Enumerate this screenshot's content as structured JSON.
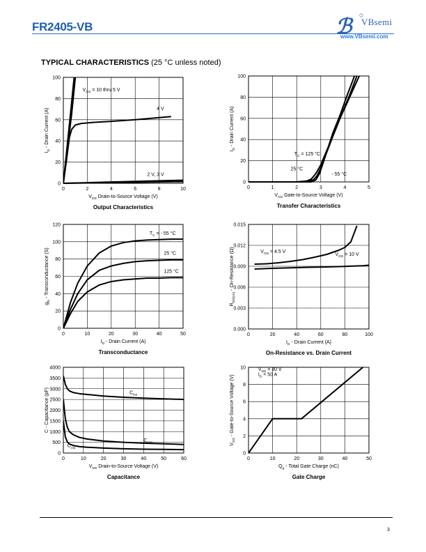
{
  "header": {
    "part_number": "FR2405-VB",
    "brand": "VBsemi",
    "url": "www.VBsemi.com",
    "brand_color": "#1f5fb3"
  },
  "section": {
    "title": "TYPICAL CHARACTERISTICS",
    "note": "(25 °C unless noted)"
  },
  "page_number": "3",
  "chart_data": [
    {
      "id": "output",
      "type": "line",
      "title": "Output Characteristics",
      "xlabel": "Drain-to-Source Voltage (V)",
      "xlabel_sym": "V",
      "xlabel_sub": "DS",
      "ylabel": "- Drain Current (A)",
      "ylabel_sym": "I",
      "ylabel_sub": "D",
      "xlim": [
        0,
        10
      ],
      "ylim": [
        0,
        100
      ],
      "xticks": [
        "0",
        "2",
        "4",
        "6",
        "8",
        "10"
      ],
      "yticks": [
        "0",
        "20",
        "40",
        "60",
        "80",
        "100"
      ],
      "grid": true,
      "series": [
        {
          "name": "V_GS = 10 thru 5 V",
          "x": [
            0,
            0.3,
            0.6,
            0.9
          ],
          "y": [
            0,
            33,
            66,
            100
          ]
        },
        {
          "name": "V_GS = 10 thru 5 V",
          "x": [
            0,
            0.35,
            0.7,
            1.0
          ],
          "y": [
            0,
            33,
            66,
            100
          ]
        },
        {
          "name": "4 V",
          "x": [
            0,
            0.3,
            0.5,
            0.7,
            1.0,
            1.5,
            2.5,
            4,
            6,
            8,
            9
          ],
          "y": [
            0,
            25,
            43,
            51,
            55,
            56.5,
            57.5,
            58.5,
            60,
            62,
            63
          ]
        },
        {
          "name": "2 V, 3 V",
          "x": [
            0,
            2,
            4,
            6,
            8,
            10
          ],
          "y": [
            0,
            0.3,
            0.6,
            1.0,
            1.3,
            1.6
          ]
        },
        {
          "name": "2 V, 3 V",
          "x": [
            0,
            2,
            4,
            6,
            8,
            10
          ],
          "y": [
            0,
            0.6,
            1.2,
            1.8,
            2.4,
            2.9
          ]
        }
      ],
      "annotations": [
        {
          "text": "V",
          "sub": "GS",
          "rest": " = 10 thru 5 V",
          "x": 1.6,
          "y": 87
        },
        {
          "text": "4 V",
          "x": 7.8,
          "y": 69
        },
        {
          "text": "2 V, 3 V",
          "x": 7.0,
          "y": 7
        }
      ]
    },
    {
      "id": "transfer",
      "type": "line",
      "title": "Transfer Characteristics",
      "xlabel": "Gate-to-Source Voltage (V)",
      "xlabel_sym": "V",
      "xlabel_sub": "GS",
      "ylabel": "- Drain Current (A)",
      "ylabel_sym": "I",
      "ylabel_sub": "D",
      "xlim": [
        0,
        5
      ],
      "ylim": [
        0,
        100
      ],
      "xticks": [
        "0",
        "1",
        "2",
        "3",
        "4",
        "5"
      ],
      "yticks": [
        "0",
        "20",
        "40",
        "60",
        "80",
        "100"
      ],
      "grid": true,
      "series": [
        {
          "name": "T_C = 125 °C",
          "x": [
            0,
            2.0,
            2.4,
            2.6,
            2.8,
            3.0,
            3.2,
            3.5,
            3.8,
            4.2,
            4.6
          ],
          "y": [
            0,
            0,
            0.8,
            2.5,
            8,
            16,
            27,
            43,
            60,
            80,
            100
          ]
        },
        {
          "name": "25 °C",
          "x": [
            0,
            2.4,
            2.7,
            2.85,
            3.0,
            3.2,
            3.5,
            3.8,
            4.2,
            4.5
          ],
          "y": [
            0,
            0,
            2,
            6,
            13,
            25,
            43,
            60,
            82,
            100
          ]
        },
        {
          "name": "- 55 °C",
          "x": [
            0,
            2.6,
            2.8,
            2.95,
            3.1,
            3.3,
            3.5,
            3.8,
            4.1,
            4.4
          ],
          "y": [
            0,
            0,
            2,
            8,
            18,
            32,
            46,
            63,
            82,
            100
          ]
        }
      ],
      "annotations": [
        {
          "text": "T",
          "sub": "C",
          "rest": " = 125 °C",
          "x": 1.9,
          "y": 25
        },
        {
          "text": "25 °C",
          "x": 1.75,
          "y": 11
        },
        {
          "text": "- 55 °C",
          "x": 3.45,
          "y": 6
        }
      ]
    },
    {
      "id": "transconductance",
      "type": "line",
      "title": "Transconductance",
      "xlabel": "- Drain Current (A)",
      "xlabel_sym": "I",
      "xlabel_sub": "D",
      "ylabel": "- Transconductance (S)",
      "ylabel_sym": "g",
      "ylabel_sub": "fs",
      "xlim": [
        0,
        50
      ],
      "ylim": [
        0,
        120
      ],
      "xticks": [
        "0",
        "10",
        "20",
        "30",
        "40",
        "50"
      ],
      "yticks": [
        "0",
        "20",
        "40",
        "60",
        "80",
        "100",
        "120"
      ],
      "grid": true,
      "series": [
        {
          "name": "T_C = - 55 °C",
          "x": [
            0,
            3,
            6,
            10,
            15,
            20,
            25,
            30,
            35,
            40,
            45,
            50
          ],
          "y": [
            0,
            30,
            52,
            72,
            87,
            95,
            99,
            101,
            102,
            102.5,
            103,
            103
          ]
        },
        {
          "name": "25 °C",
          "x": [
            0,
            3,
            6,
            10,
            15,
            20,
            25,
            30,
            35,
            40,
            45,
            50
          ],
          "y": [
            0,
            22,
            40,
            56,
            67,
            72,
            75,
            77,
            78,
            78.5,
            79,
            79
          ]
        },
        {
          "name": "125 °C",
          "x": [
            0,
            3,
            6,
            10,
            15,
            20,
            25,
            30,
            35,
            40,
            45,
            50
          ],
          "y": [
            0,
            17,
            31,
            42,
            50,
            54,
            56,
            57,
            58,
            58,
            58.5,
            58.5
          ]
        }
      ],
      "annotations": [
        {
          "text": "T",
          "sub": "C",
          "rest": " = - 55 °C",
          "x": 36,
          "y": 108
        },
        {
          "text": "25 °C",
          "x": 42,
          "y": 85
        },
        {
          "text": "125 °C",
          "x": 42,
          "y": 64
        }
      ]
    },
    {
      "id": "on_resistance",
      "type": "line",
      "title": "On-Resistance vs. Drain Current",
      "xlabel": "- Drain Current (A)",
      "xlabel_sym": "I",
      "xlabel_sub": "D",
      "ylabel": "- On-Resistance (Ω)",
      "ylabel_sym": "R",
      "ylabel_sub": "DS(on)",
      "xlim": [
        0,
        100
      ],
      "ylim": [
        0,
        0.015
      ],
      "xticks": [
        "0",
        "20",
        "40",
        "60",
        "80",
        "100"
      ],
      "yticks": [
        "0.000",
        "0.003",
        "0.006",
        "0.009",
        "0.012",
        "0.015"
      ],
      "grid": true,
      "series": [
        {
          "name": "V_GS = 4.5 V",
          "x": [
            5,
            15,
            25,
            35,
            45,
            55,
            65,
            75,
            80,
            85,
            90
          ],
          "y": [
            0.0093,
            0.00935,
            0.0095,
            0.0097,
            0.00995,
            0.0103,
            0.0107,
            0.0113,
            0.0117,
            0.0125,
            0.0148
          ]
        },
        {
          "name": "V_GS = 10 V",
          "x": [
            5,
            20,
            35,
            50,
            65,
            80,
            95,
            100
          ],
          "y": [
            0.0086,
            0.0087,
            0.00878,
            0.00885,
            0.0089,
            0.00898,
            0.00908,
            0.00915
          ]
        }
      ],
      "annotations": [
        {
          "text": "V",
          "sub": "GS",
          "rest": " = 4.5 V",
          "x": 10,
          "y": 0.0109
        },
        {
          "text": "V",
          "sub": "GS",
          "rest": " = 10 V",
          "x": 72,
          "y": 0.0105
        }
      ]
    },
    {
      "id": "capacitance",
      "type": "line",
      "title": "Capacitance",
      "xlabel": "Drain-to-Source Voltage (V)",
      "xlabel_sym": "V",
      "xlabel_sub": "DS",
      "ylabel": "C - Capacitance (pF)",
      "xlim": [
        0,
        60
      ],
      "ylim": [
        0,
        4000
      ],
      "xticks": [
        "0",
        "10",
        "20",
        "30",
        "40",
        "50",
        "60"
      ],
      "yticks": [
        "0",
        "500",
        "1000",
        "1500",
        "2000",
        "2500",
        "3000",
        "3500",
        "4000"
      ],
      "grid": true,
      "series": [
        {
          "name": "C_iss",
          "x": [
            0,
            1,
            2,
            3,
            5,
            8,
            12,
            20,
            30,
            40,
            50,
            60
          ],
          "y": [
            3600,
            3200,
            3000,
            2900,
            2820,
            2770,
            2730,
            2660,
            2600,
            2560,
            2530,
            2500
          ]
        },
        {
          "name": "C_oss",
          "x": [
            0,
            1,
            2,
            3,
            5,
            8,
            12,
            20,
            30,
            40,
            50,
            60
          ],
          "y": [
            2500,
            1600,
            1200,
            1000,
            850,
            730,
            650,
            560,
            500,
            460,
            430,
            400
          ]
        },
        {
          "name": "C_rss",
          "x": [
            0,
            1,
            2,
            3,
            5,
            8,
            12,
            20,
            30,
            40,
            50,
            60
          ],
          "y": [
            1500,
            750,
            520,
            420,
            350,
            300,
            270,
            230,
            200,
            180,
            170,
            160
          ]
        }
      ],
      "annotations": [
        {
          "text": "C",
          "sub": "iss",
          "x": 33,
          "y": 2750
        },
        {
          "text": "C",
          "sub": "oss",
          "x": 40,
          "y": 520
        },
        {
          "text": "C",
          "sub": "rss",
          "x": 2,
          "y": 270
        }
      ]
    },
    {
      "id": "gate_charge",
      "type": "line",
      "title": "Gate Charge",
      "xlabel": "- Total Gate Charge (nC)",
      "xlabel_sym": "Q",
      "xlabel_sub": "g",
      "ylabel": "- Gate-to-Source Voltage (V)",
      "ylabel_sym": "V",
      "ylabel_sub": "GS",
      "xlim": [
        0,
        50
      ],
      "ylim": [
        0,
        10
      ],
      "xticks": [
        "0",
        "10",
        "20",
        "30",
        "40",
        "50"
      ],
      "yticks": [
        "0",
        "2",
        "4",
        "6",
        "8",
        "10"
      ],
      "grid": true,
      "series": [
        {
          "name": "Q_g",
          "x": [
            0,
            10,
            22,
            47.5
          ],
          "y": [
            0,
            4,
            4,
            10
          ]
        }
      ],
      "annotations": [
        {
          "text": "V",
          "sub": "DS",
          "rest": " = 30 V",
          "x": 4,
          "y": 9.6
        },
        {
          "text": "I",
          "sub": "D",
          "rest": " = 50 A",
          "x": 4,
          "y": 9.0
        }
      ]
    }
  ]
}
